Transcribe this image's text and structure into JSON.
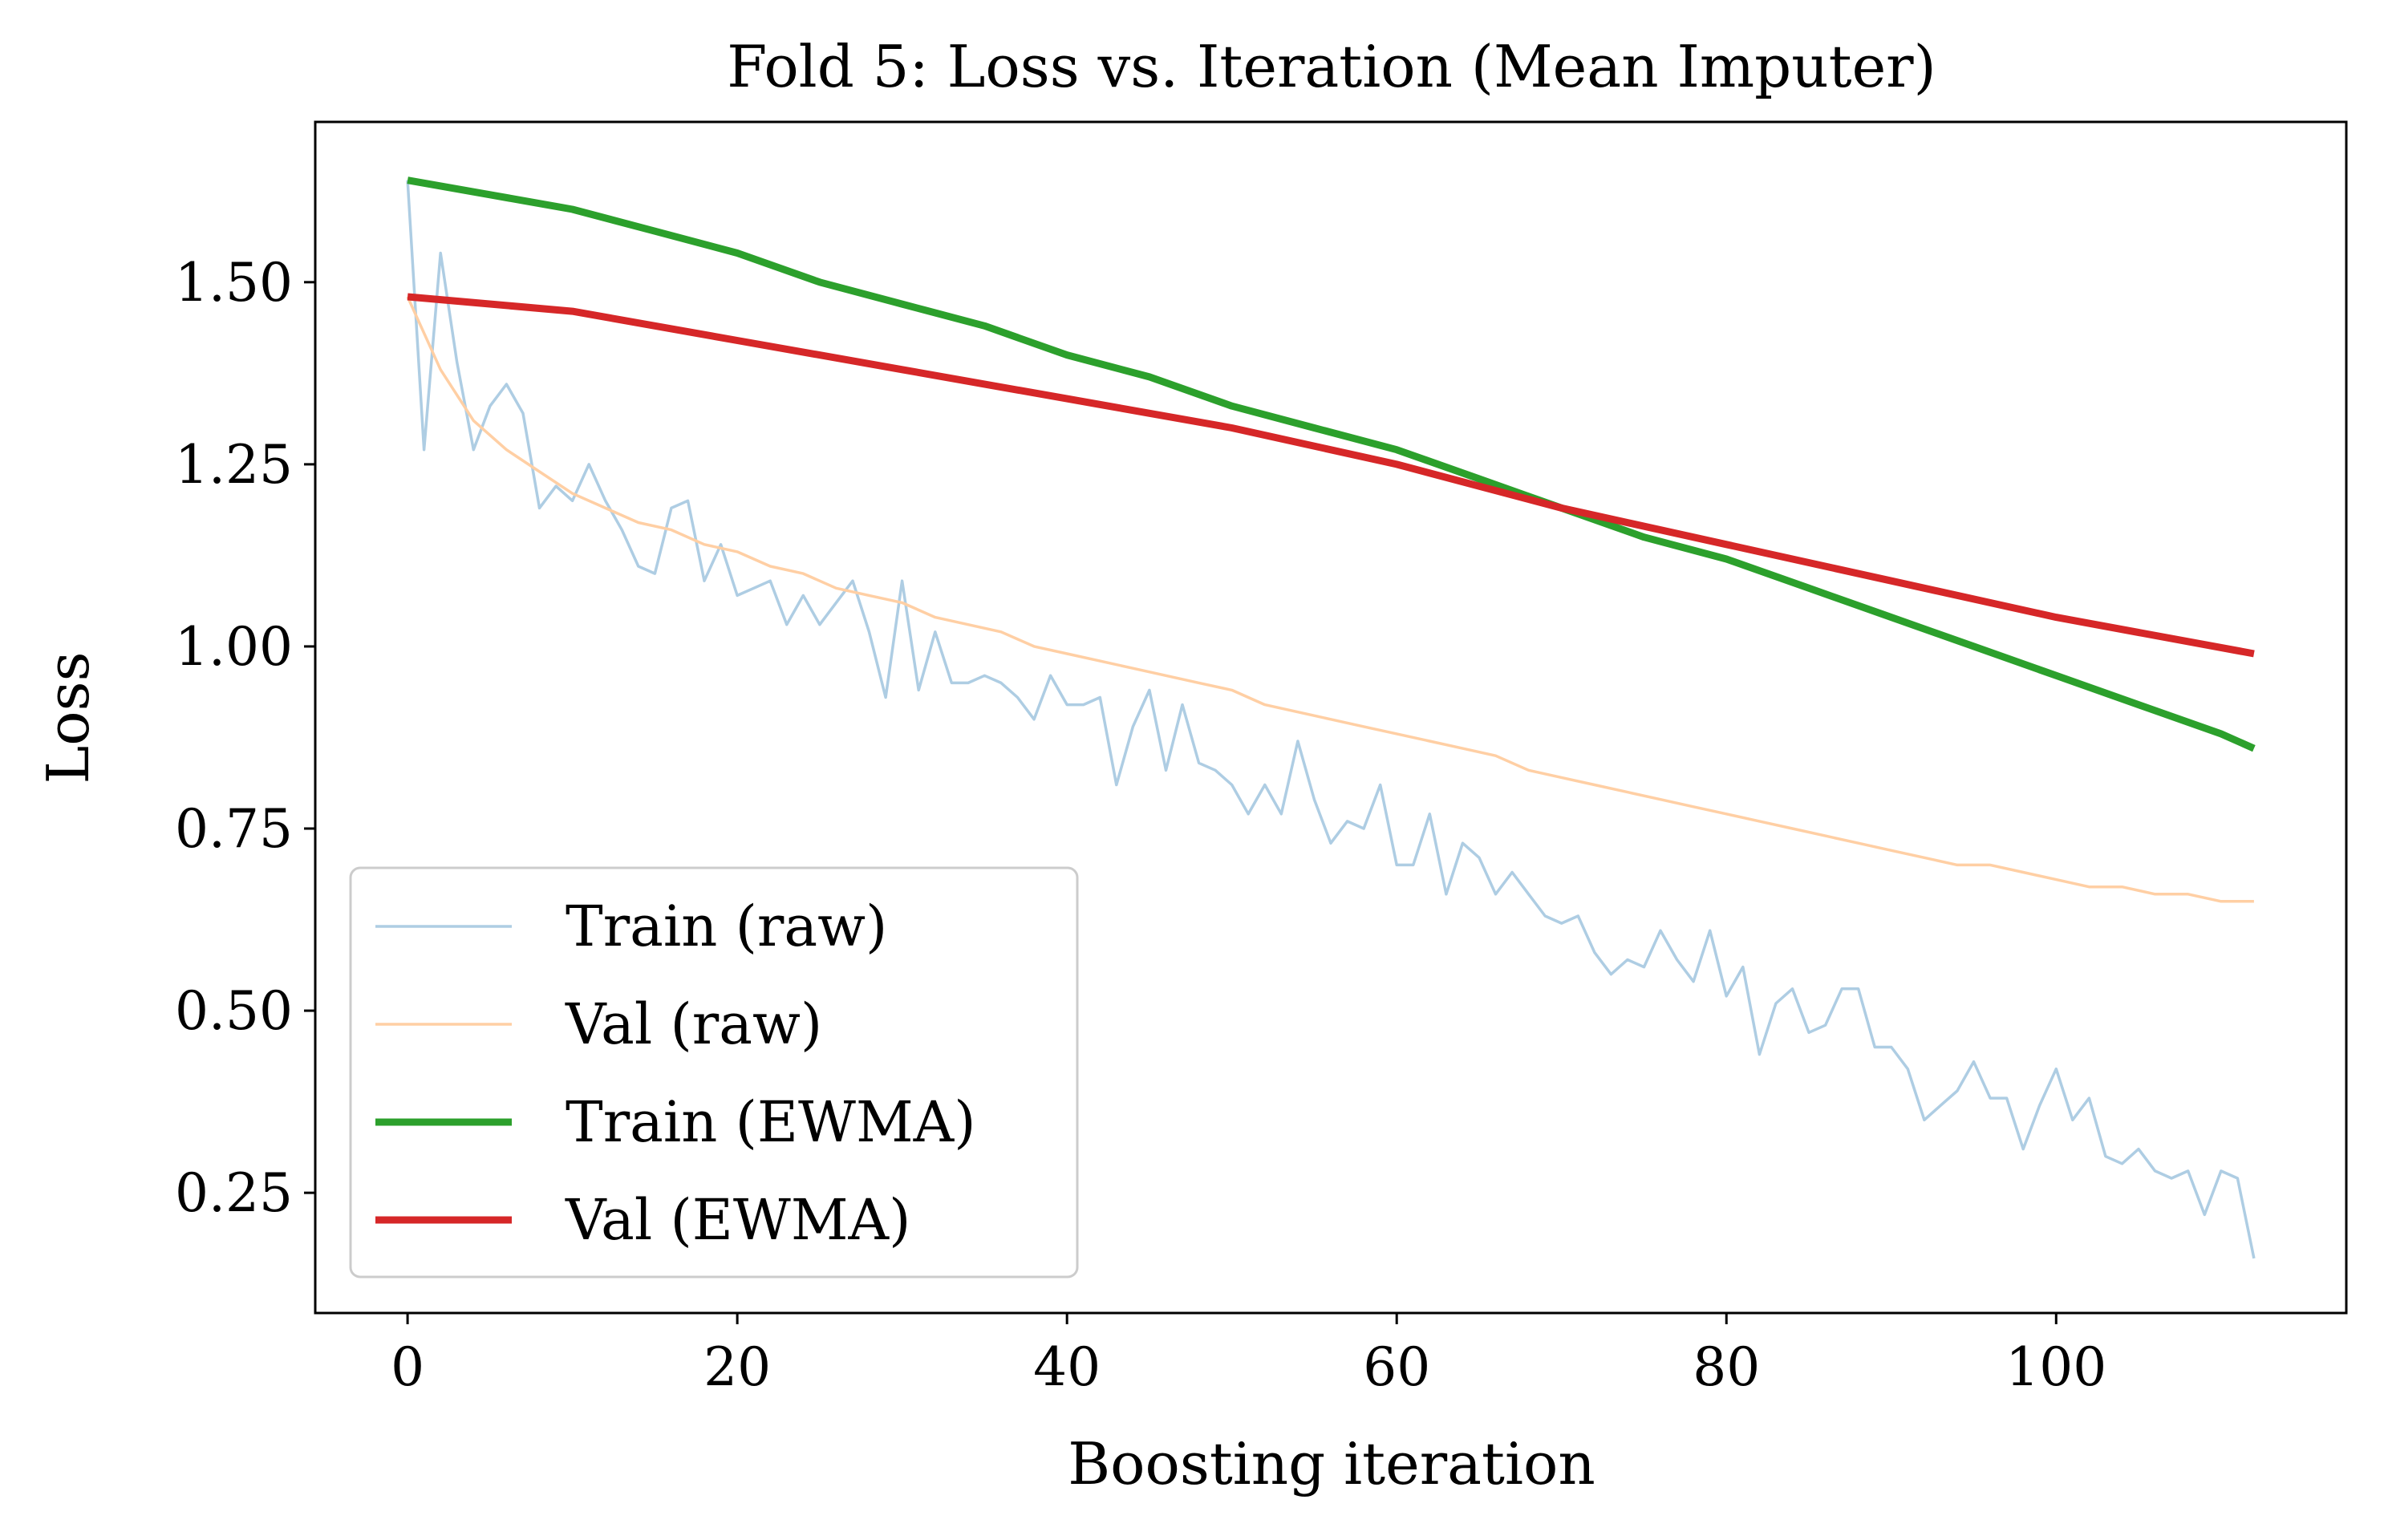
{
  "chart_data": {
    "type": "line",
    "title": "Fold 5: Loss vs. Iteration (Mean Imputer)",
    "xlabel": "Boosting iteration",
    "ylabel": "Loss",
    "xlim": [
      -5.6,
      117.6
    ],
    "ylim": [
      0.085,
      1.72
    ],
    "xticks": [
      {
        "value": 0,
        "label": "0"
      },
      {
        "value": 20,
        "label": "20"
      },
      {
        "value": 40,
        "label": "40"
      },
      {
        "value": 60,
        "label": "60"
      },
      {
        "value": 80,
        "label": "80"
      },
      {
        "value": 100,
        "label": "100"
      }
    ],
    "yticks": [
      {
        "value": 0.25,
        "label": "0.25"
      },
      {
        "value": 0.5,
        "label": "0.50"
      },
      {
        "value": 0.75,
        "label": "0.75"
      },
      {
        "value": 1.0,
        "label": "1.00"
      },
      {
        "value": 1.25,
        "label": "1.25"
      },
      {
        "value": 1.5,
        "label": "1.50"
      }
    ],
    "grid": false,
    "legend_position": "lower-left",
    "series": [
      {
        "name": "Train (raw)",
        "color": "#aecde3",
        "values": [
          [
            0,
            1.64
          ],
          [
            1,
            1.27
          ],
          [
            2,
            1.54
          ],
          [
            3,
            1.39
          ],
          [
            4,
            1.27
          ],
          [
            5,
            1.33
          ],
          [
            6,
            1.36
          ],
          [
            7,
            1.32
          ],
          [
            8,
            1.19
          ],
          [
            9,
            1.22
          ],
          [
            10,
            1.2
          ],
          [
            11,
            1.25
          ],
          [
            12,
            1.2
          ],
          [
            13,
            1.16
          ],
          [
            14,
            1.11
          ],
          [
            15,
            1.1
          ],
          [
            16,
            1.19
          ],
          [
            17,
            1.2
          ],
          [
            18,
            1.09
          ],
          [
            19,
            1.14
          ],
          [
            20,
            1.07
          ],
          [
            21,
            1.08
          ],
          [
            22,
            1.09
          ],
          [
            23,
            1.03
          ],
          [
            24,
            1.07
          ],
          [
            25,
            1.03
          ],
          [
            26,
            1.06
          ],
          [
            27,
            1.09
          ],
          [
            28,
            1.02
          ],
          [
            29,
            0.93
          ],
          [
            30,
            1.09
          ],
          [
            31,
            0.94
          ],
          [
            32,
            1.02
          ],
          [
            33,
            0.95
          ],
          [
            34,
            0.95
          ],
          [
            35,
            0.96
          ],
          [
            36,
            0.95
          ],
          [
            37,
            0.93
          ],
          [
            38,
            0.9
          ],
          [
            39,
            0.96
          ],
          [
            40,
            0.92
          ],
          [
            41,
            0.92
          ],
          [
            42,
            0.93
          ],
          [
            43,
            0.81
          ],
          [
            44,
            0.89
          ],
          [
            45,
            0.94
          ],
          [
            46,
            0.83
          ],
          [
            47,
            0.92
          ],
          [
            48,
            0.84
          ],
          [
            49,
            0.83
          ],
          [
            50,
            0.81
          ],
          [
            51,
            0.77
          ],
          [
            52,
            0.81
          ],
          [
            53,
            0.77
          ],
          [
            54,
            0.87
          ],
          [
            55,
            0.79
          ],
          [
            56,
            0.73
          ],
          [
            57,
            0.76
          ],
          [
            58,
            0.75
          ],
          [
            59,
            0.81
          ],
          [
            60,
            0.7
          ],
          [
            61,
            0.7
          ],
          [
            62,
            0.77
          ],
          [
            63,
            0.66
          ],
          [
            64,
            0.73
          ],
          [
            65,
            0.71
          ],
          [
            66,
            0.66
          ],
          [
            67,
            0.69
          ],
          [
            68,
            0.66
          ],
          [
            69,
            0.63
          ],
          [
            70,
            0.62
          ],
          [
            71,
            0.63
          ],
          [
            72,
            0.58
          ],
          [
            73,
            0.55
          ],
          [
            74,
            0.57
          ],
          [
            75,
            0.56
          ],
          [
            76,
            0.61
          ],
          [
            77,
            0.57
          ],
          [
            78,
            0.54
          ],
          [
            79,
            0.61
          ],
          [
            80,
            0.52
          ],
          [
            81,
            0.56
          ],
          [
            82,
            0.44
          ],
          [
            83,
            0.51
          ],
          [
            84,
            0.53
          ],
          [
            85,
            0.47
          ],
          [
            86,
            0.48
          ],
          [
            87,
            0.53
          ],
          [
            88,
            0.53
          ],
          [
            89,
            0.45
          ],
          [
            90,
            0.45
          ],
          [
            91,
            0.42
          ],
          [
            92,
            0.35
          ],
          [
            93,
            0.37
          ],
          [
            94,
            0.39
          ],
          [
            95,
            0.43
          ],
          [
            96,
            0.38
          ],
          [
            97,
            0.38
          ],
          [
            98,
            0.31
          ],
          [
            99,
            0.37
          ],
          [
            100,
            0.42
          ],
          [
            101,
            0.35
          ],
          [
            102,
            0.38
          ],
          [
            103,
            0.3
          ],
          [
            104,
            0.29
          ],
          [
            105,
            0.31
          ],
          [
            106,
            0.28
          ],
          [
            107,
            0.27
          ],
          [
            108,
            0.28
          ],
          [
            109,
            0.22
          ],
          [
            110,
            0.28
          ],
          [
            111,
            0.27
          ],
          [
            112,
            0.16
          ]
        ]
      },
      {
        "name": "Val (raw)",
        "color": "#ffcfa4",
        "values": [
          [
            0,
            1.48
          ],
          [
            2,
            1.38
          ],
          [
            4,
            1.31
          ],
          [
            6,
            1.27
          ],
          [
            8,
            1.24
          ],
          [
            10,
            1.21
          ],
          [
            12,
            1.19
          ],
          [
            14,
            1.17
          ],
          [
            16,
            1.16
          ],
          [
            18,
            1.14
          ],
          [
            20,
            1.13
          ],
          [
            22,
            1.11
          ],
          [
            24,
            1.1
          ],
          [
            26,
            1.08
          ],
          [
            28,
            1.07
          ],
          [
            30,
            1.06
          ],
          [
            32,
            1.04
          ],
          [
            34,
            1.03
          ],
          [
            36,
            1.02
          ],
          [
            38,
            1.0
          ],
          [
            40,
            0.99
          ],
          [
            42,
            0.98
          ],
          [
            44,
            0.97
          ],
          [
            46,
            0.96
          ],
          [
            48,
            0.95
          ],
          [
            50,
            0.94
          ],
          [
            52,
            0.92
          ],
          [
            54,
            0.91
          ],
          [
            56,
            0.9
          ],
          [
            58,
            0.89
          ],
          [
            60,
            0.88
          ],
          [
            62,
            0.87
          ],
          [
            64,
            0.86
          ],
          [
            66,
            0.85
          ],
          [
            68,
            0.83
          ],
          [
            70,
            0.82
          ],
          [
            72,
            0.81
          ],
          [
            74,
            0.8
          ],
          [
            76,
            0.79
          ],
          [
            78,
            0.78
          ],
          [
            80,
            0.77
          ],
          [
            82,
            0.76
          ],
          [
            84,
            0.75
          ],
          [
            86,
            0.74
          ],
          [
            88,
            0.73
          ],
          [
            90,
            0.72
          ],
          [
            92,
            0.71
          ],
          [
            94,
            0.7
          ],
          [
            96,
            0.7
          ],
          [
            98,
            0.69
          ],
          [
            100,
            0.68
          ],
          [
            102,
            0.67
          ],
          [
            104,
            0.67
          ],
          [
            106,
            0.66
          ],
          [
            108,
            0.66
          ],
          [
            110,
            0.65
          ],
          [
            112,
            0.65
          ]
        ]
      },
      {
        "name": "Train (EWMA)",
        "color": "#2ca02c",
        "values": [
          [
            0,
            1.64
          ],
          [
            5,
            1.62
          ],
          [
            10,
            1.6
          ],
          [
            15,
            1.57
          ],
          [
            20,
            1.54
          ],
          [
            25,
            1.5
          ],
          [
            30,
            1.47
          ],
          [
            35,
            1.44
          ],
          [
            40,
            1.4
          ],
          [
            45,
            1.37
          ],
          [
            50,
            1.33
          ],
          [
            55,
            1.3
          ],
          [
            60,
            1.27
          ],
          [
            65,
            1.23
          ],
          [
            70,
            1.19
          ],
          [
            75,
            1.15
          ],
          [
            80,
            1.12
          ],
          [
            85,
            1.08
          ],
          [
            90,
            1.04
          ],
          [
            95,
            1.0
          ],
          [
            100,
            0.96
          ],
          [
            105,
            0.92
          ],
          [
            110,
            0.88
          ],
          [
            112,
            0.86
          ]
        ]
      },
      {
        "name": "Val (EWMA)",
        "color": "#d62728",
        "values": [
          [
            0,
            1.48
          ],
          [
            10,
            1.46
          ],
          [
            20,
            1.42
          ],
          [
            30,
            1.38
          ],
          [
            40,
            1.34
          ],
          [
            50,
            1.3
          ],
          [
            60,
            1.25
          ],
          [
            70,
            1.19
          ],
          [
            80,
            1.14
          ],
          [
            90,
            1.09
          ],
          [
            100,
            1.04
          ],
          [
            112,
            0.99
          ]
        ]
      }
    ]
  }
}
